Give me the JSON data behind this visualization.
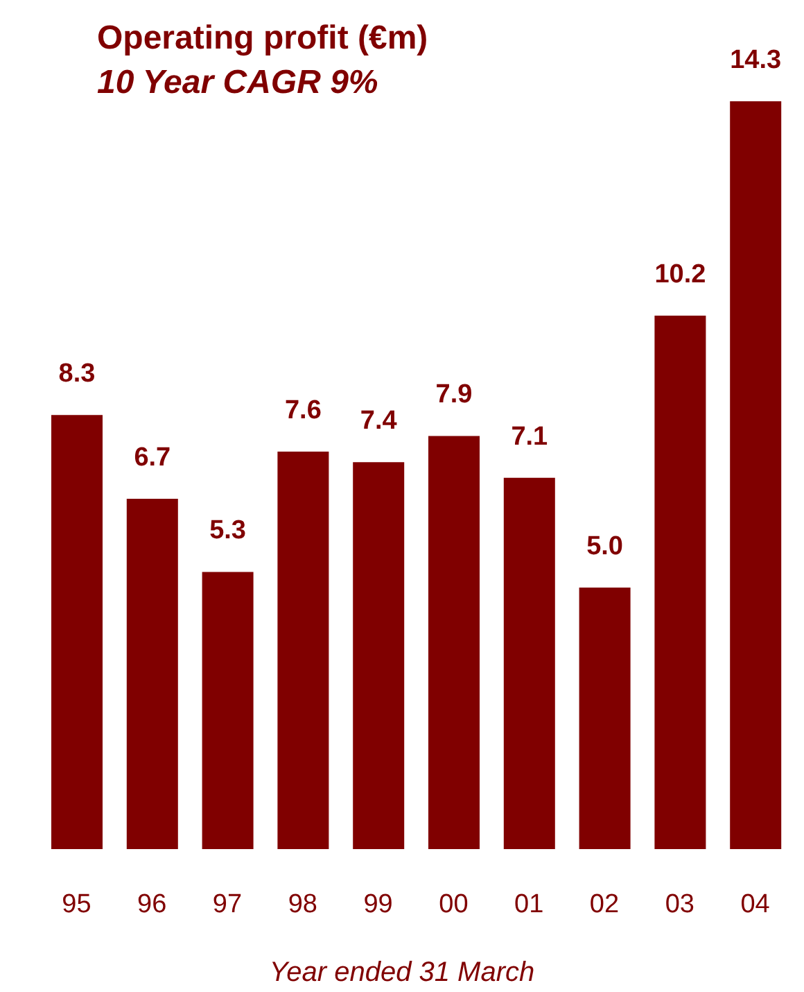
{
  "chart_data": {
    "type": "bar",
    "title": "Operating profit (€m)",
    "subtitle": "10 Year CAGR 9%",
    "xlabel": "Year ended 31 March",
    "categories": [
      "95",
      "96",
      "97",
      "98",
      "99",
      "00",
      "01",
      "02",
      "03",
      "04"
    ],
    "values": [
      8.3,
      6.7,
      5.3,
      7.6,
      7.4,
      7.9,
      7.1,
      5.0,
      10.2,
      14.3
    ],
    "value_labels": [
      "8.3",
      "6.7",
      "5.3",
      "7.6",
      "7.4",
      "7.9",
      "7.1",
      "5.0",
      "10.2",
      "14.3"
    ],
    "color": "#800000"
  }
}
